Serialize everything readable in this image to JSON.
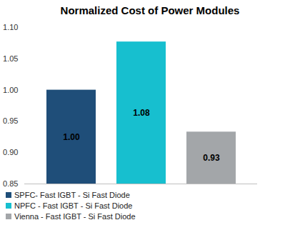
{
  "chart_data": {
    "type": "bar",
    "title": "Normalized Cost of Power Modules",
    "categories": [
      "SPFC- Fast IGBT - Si Fast Diode",
      "NPFC - Fast IGBT - Si Fast Diode",
      "Vienna - Fast IGBT - Si Fast Diode"
    ],
    "values": [
      1.0,
      1.077,
      0.933
    ],
    "value_labels": [
      "1.00",
      "1.08",
      "0.93"
    ],
    "colors": [
      "#1f4e79",
      "#17bfcf",
      "#a3a6a9"
    ],
    "ylim": [
      0.85,
      1.1
    ],
    "yticks": [
      0.85,
      {
        "value": 0.9,
        "label": "0.90"
      },
      0.95,
      {
        "value": 1.0,
        "label": "1.00"
      },
      1.05,
      {
        "value": 1.1,
        "label": "1.10"
      }
    ],
    "grid": false,
    "data_labels": true,
    "legend": "bottom",
    "tick_labels": "y"
  }
}
